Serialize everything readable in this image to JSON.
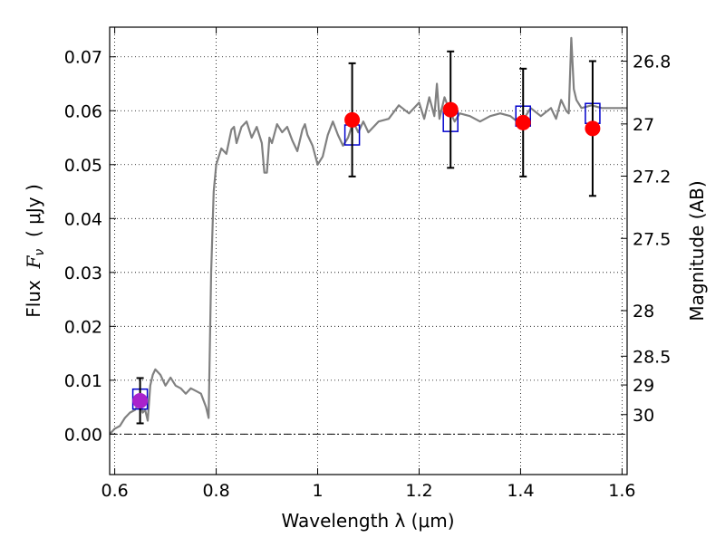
{
  "chart_data": {
    "type": "scatter",
    "xlabel": "Wavelength  λ (μm)",
    "ylabel_text": "Flux  ",
    "ylabel_symbol": "F",
    "ylabel_subscript": "ν",
    "ylabel_units": "  ( μJy )",
    "y2label": "Magnitude (AB)",
    "xlim": [
      0.59,
      1.61
    ],
    "ylim": [
      -0.0075,
      0.0755
    ],
    "x_ticks": [
      {
        "value": 0.6,
        "label": "0.6"
      },
      {
        "value": 0.8,
        "label": "0.8"
      },
      {
        "value": 1.0,
        "label": "1"
      },
      {
        "value": 1.2,
        "label": "1.2"
      },
      {
        "value": 1.4,
        "label": "1.4"
      },
      {
        "value": 1.6,
        "label": "1.6"
      }
    ],
    "y_ticks": [
      {
        "value": 0.0,
        "label": "0.00"
      },
      {
        "value": 0.01,
        "label": "0.01"
      },
      {
        "value": 0.02,
        "label": "0.02"
      },
      {
        "value": 0.03,
        "label": "0.03"
      },
      {
        "value": 0.04,
        "label": "0.04"
      },
      {
        "value": 0.05,
        "label": "0.05"
      },
      {
        "value": 0.06,
        "label": "0.06"
      },
      {
        "value": 0.07,
        "label": "0.07"
      }
    ],
    "y2_ticks": [
      {
        "mag": 26.8,
        "label": "26.8"
      },
      {
        "mag": 27.0,
        "label": "27"
      },
      {
        "mag": 27.2,
        "label": "27.2"
      },
      {
        "mag": 27.5,
        "label": "27.5"
      },
      {
        "mag": 28.0,
        "label": "28"
      },
      {
        "mag": 28.5,
        "label": "28.5"
      },
      {
        "mag": 29.0,
        "label": "29"
      },
      {
        "mag": 30.0,
        "label": "30"
      }
    ],
    "grid": true,
    "zero_line": true,
    "spectrum": {
      "color": "#808080",
      "x": [
        0.59,
        0.6,
        0.61,
        0.62,
        0.63,
        0.64,
        0.65,
        0.655,
        0.66,
        0.665,
        0.67,
        0.675,
        0.68,
        0.69,
        0.7,
        0.71,
        0.72,
        0.73,
        0.74,
        0.75,
        0.76,
        0.77,
        0.78,
        0.785,
        0.79,
        0.795,
        0.8,
        0.81,
        0.82,
        0.83,
        0.835,
        0.84,
        0.85,
        0.86,
        0.87,
        0.88,
        0.89,
        0.895,
        0.9,
        0.905,
        0.91,
        0.92,
        0.93,
        0.94,
        0.95,
        0.96,
        0.97,
        0.975,
        0.98,
        0.99,
        1.0,
        1.01,
        1.02,
        1.03,
        1.04,
        1.05,
        1.06,
        1.07,
        1.08,
        1.09,
        1.1,
        1.12,
        1.14,
        1.16,
        1.18,
        1.2,
        1.21,
        1.22,
        1.23,
        1.235,
        1.24,
        1.25,
        1.26,
        1.27,
        1.28,
        1.3,
        1.32,
        1.34,
        1.36,
        1.38,
        1.4,
        1.42,
        1.44,
        1.46,
        1.47,
        1.48,
        1.49,
        1.495,
        1.5,
        1.505,
        1.51,
        1.52,
        1.54,
        1.56,
        1.58,
        1.6,
        1.61
      ],
      "y": [
        0.0,
        0.001,
        0.0015,
        0.003,
        0.004,
        0.0045,
        0.006,
        0.004,
        0.0045,
        0.0025,
        0.009,
        0.011,
        0.012,
        0.011,
        0.009,
        0.0105,
        0.009,
        0.0085,
        0.0075,
        0.0085,
        0.008,
        0.0075,
        0.005,
        0.003,
        0.03,
        0.045,
        0.05,
        0.053,
        0.052,
        0.0565,
        0.057,
        0.054,
        0.057,
        0.058,
        0.055,
        0.057,
        0.054,
        0.0485,
        0.0485,
        0.055,
        0.054,
        0.0575,
        0.056,
        0.057,
        0.0545,
        0.0525,
        0.0565,
        0.0575,
        0.0555,
        0.0535,
        0.05,
        0.0515,
        0.0555,
        0.058,
        0.0555,
        0.0535,
        0.055,
        0.058,
        0.056,
        0.058,
        0.056,
        0.058,
        0.0585,
        0.061,
        0.0595,
        0.0615,
        0.0585,
        0.0625,
        0.059,
        0.065,
        0.0585,
        0.0625,
        0.06,
        0.058,
        0.0595,
        0.059,
        0.058,
        0.059,
        0.0595,
        0.059,
        0.0575,
        0.0605,
        0.059,
        0.0605,
        0.0585,
        0.062,
        0.06,
        0.0595,
        0.0735,
        0.064,
        0.062,
        0.0605,
        0.061,
        0.0605,
        0.0605,
        0.0605,
        0.0605
      ]
    },
    "model_points": {
      "color": "#0000cc",
      "x": [
        0.65,
        1.068,
        1.262,
        1.405,
        1.542
      ],
      "y": [
        0.0065,
        0.0555,
        0.058,
        0.059,
        0.0595
      ]
    },
    "observed_points": [
      {
        "x": 0.65,
        "y": 0.0062,
        "err": 0.0042,
        "color": "#aa22cc"
      },
      {
        "x": 1.068,
        "y": 0.0583,
        "err": 0.0105,
        "color": "#ff0000"
      },
      {
        "x": 1.262,
        "y": 0.0602,
        "err": 0.0108,
        "color": "#ff0000"
      },
      {
        "x": 1.405,
        "y": 0.0578,
        "err": 0.01,
        "color": "#ff0000"
      },
      {
        "x": 1.542,
        "y": 0.0567,
        "err": 0.0125,
        "color": "#ff0000"
      }
    ]
  }
}
